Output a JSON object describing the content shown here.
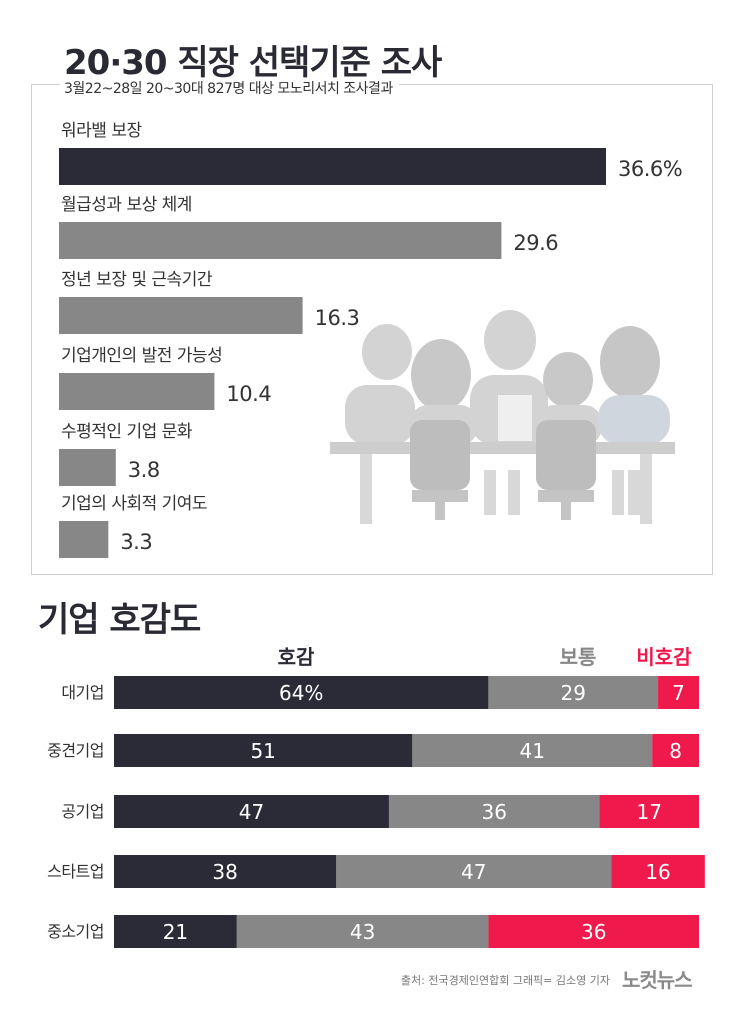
{
  "section1": {
    "title": "20·30 직장 선택기준 조사",
    "subtitle": "3월22~28일 20~30대 827명 대상 모노리서치 조사결과"
  },
  "section2": {
    "title": "기업 호감도"
  },
  "footer": {
    "source": "출처: 전국경제인연합회   그래픽= 김소영 기자",
    "logo": "노컷뉴스"
  },
  "colors": {
    "dark": "#2b2b38",
    "gray": "#878787",
    "red": "#f0194b",
    "illustration": "#d6d6d6"
  },
  "chart_data": [
    {
      "type": "bar",
      "orientation": "horizontal",
      "categories": [
        "워라밸 보장",
        "월급성과 보상 체계",
        "정년 보장 및 근속기간",
        "기업개인의 발전 가능성",
        "수평적인 기업 문화",
        "기업의 사회적 기여도"
      ],
      "values": [
        36.6,
        29.6,
        16.3,
        10.4,
        3.8,
        3.3
      ],
      "value_labels": [
        "36.6%",
        "29.6",
        "16.3",
        "10.4",
        "3.8",
        "3.3"
      ],
      "xlim": [
        0,
        36.6
      ],
      "title": "20·30 직장 선택기준 조사"
    },
    {
      "type": "bar",
      "orientation": "horizontal",
      "stacked": true,
      "categories": [
        "대기업",
        "중견기업",
        "공기업",
        "스타트업",
        "중소기업"
      ],
      "series": [
        {
          "name": "호감",
          "values": [
            64,
            51,
            47,
            38,
            21
          ],
          "labels": [
            "64%",
            "51",
            "47",
            "38",
            "21"
          ]
        },
        {
          "name": "보통",
          "values": [
            29,
            41,
            36,
            47,
            43
          ],
          "labels": [
            "29",
            "41",
            "36",
            "47",
            "43"
          ]
        },
        {
          "name": "비호감",
          "values": [
            7,
            8,
            17,
            16,
            36
          ],
          "labels": [
            "7",
            "8",
            "17",
            "16",
            "36"
          ]
        }
      ],
      "xlim": [
        0,
        100
      ],
      "legend": "top",
      "title": "기업 호감도"
    }
  ]
}
